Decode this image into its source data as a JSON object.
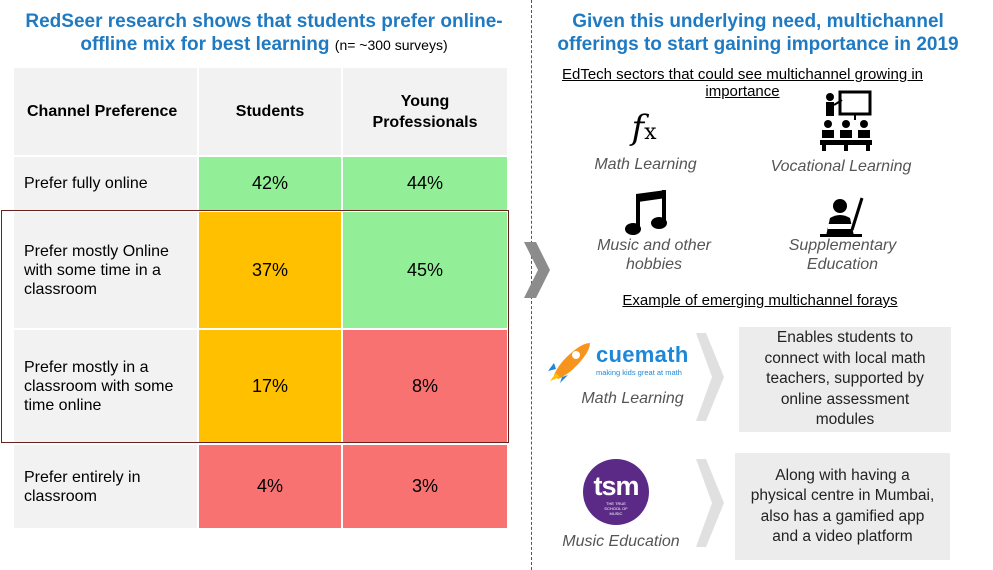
{
  "left": {
    "title_line1": "RedSeer research shows that students prefer online-",
    "title_line2": "offline mix for best learning",
    "title_note": "(n= ~300 surveys)",
    "table": {
      "headers": [
        "Channel  Preference",
        "Students",
        "Young Professionals"
      ],
      "rows": [
        {
          "label": "Prefer fully online",
          "students": "42%",
          "young": "44%"
        },
        {
          "label": "Prefer mostly Online with some time in a classroom",
          "students": "37%",
          "young": "45%"
        },
        {
          "label": "Prefer mostly in a classroom with some time online",
          "students": "17%",
          "young": "8%"
        },
        {
          "label": "Prefer entirely in classroom",
          "students": "4%",
          "young": "3%"
        }
      ]
    }
  },
  "right": {
    "title_line1": "Given this underlying need, multichannel",
    "title_line2": "offerings to start gaining importance in 2019",
    "sectors_heading": "EdTech sectors that could see multichannel growing in importance",
    "sectors": [
      {
        "label": "Math Learning",
        "icon": "function-icon"
      },
      {
        "label": "Vocational Learning",
        "icon": "classroom-icon"
      },
      {
        "label": "Music and other hobbies",
        "icon": "music-note-icon"
      },
      {
        "label": "Supplementary Education",
        "icon": "student-reading-icon"
      }
    ],
    "forays_heading": "Example of emerging multichannel forays",
    "examples": [
      {
        "logo_text": "cuemath",
        "logo_tagline": "making kids great at math",
        "category": "Math Learning",
        "description": "Enables students to connect with local math teachers, supported by online assessment modules"
      },
      {
        "logo_text": "tsm",
        "logo_tagline": "THE TRUE SCHOOL OF MUSIC",
        "category": "Music Education",
        "description": "Along with having a physical centre in Mumbai, also has a gamified app and a video platform"
      }
    ]
  },
  "colors": {
    "title_blue": "#1f7ac2",
    "green": "#92ee97",
    "amber": "#ffc000",
    "red": "#f87272",
    "cuemath_orange": "#f7941d",
    "tsm_purple": "#5b2a86"
  }
}
